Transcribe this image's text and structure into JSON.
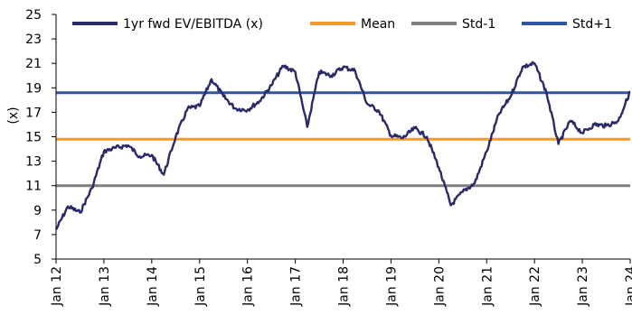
{
  "chart_data": {
    "type": "line",
    "title": "",
    "xlabel": "",
    "ylabel": "(x)",
    "ylim": [
      5,
      25
    ],
    "y_ticks": [
      5,
      7,
      9,
      11,
      13,
      15,
      17,
      19,
      21,
      23,
      25
    ],
    "x_ticks": [
      "Jan 12",
      "Jan 13",
      "Jan 14",
      "Jan 15",
      "Jan 16",
      "Jan 17",
      "Jan 18",
      "Jan 19",
      "Jan 20",
      "Jan 21",
      "Jan 22",
      "Jan 23",
      "Jan 24"
    ],
    "grid": false,
    "legend": "top",
    "colors": {
      "series": "#2a2a6b",
      "mean": "#f39a2e",
      "std_minus": "#7f7f7f",
      "std_plus": "#2f56a5"
    },
    "series": [
      {
        "name": "1yr fwd EV/EBITDA (x)",
        "x": [
          "Jan 12",
          "Apr 12",
          "Jul 12",
          "Oct 12",
          "Jan 13",
          "Apr 13",
          "Jul 13",
          "Oct 13",
          "Jan 14",
          "Apr 14",
          "Jul 14",
          "Oct 14",
          "Jan 15",
          "Apr 15",
          "Jul 15",
          "Oct 15",
          "Jan 16",
          "Apr 16",
          "Jul 16",
          "Oct 16",
          "Jan 17",
          "Apr 17",
          "Jul 17",
          "Oct 17",
          "Jan 18",
          "Apr 18",
          "Jul 18",
          "Oct 18",
          "Jan 19",
          "Apr 19",
          "Jul 19",
          "Oct 19",
          "Jan 20",
          "Apr 20",
          "Jul 20",
          "Oct 20",
          "Jan 21",
          "Apr 21",
          "Jul 21",
          "Oct 21",
          "Jan 22",
          "Apr 22",
          "Jul 22",
          "Oct 22",
          "Jan 23",
          "Apr 23",
          "Jul 23",
          "Oct 23",
          "Jan 24"
        ],
        "values": [
          7.4,
          9.3,
          8.8,
          10.8,
          13.8,
          14.1,
          14.3,
          13.4,
          13.5,
          11.9,
          15.0,
          17.3,
          17.5,
          19.7,
          18.3,
          17.3,
          17.2,
          17.9,
          19.2,
          20.8,
          20.3,
          15.8,
          20.3,
          20.0,
          20.7,
          20.4,
          17.7,
          17.1,
          15.1,
          14.9,
          15.7,
          15.0,
          12.5,
          9.4,
          10.5,
          11.2,
          13.8,
          16.8,
          18.3,
          20.7,
          21.0,
          18.6,
          14.4,
          16.3,
          15.3,
          16.0,
          15.9,
          16.3,
          18.7
        ]
      },
      {
        "name": "Mean",
        "value": 14.8
      },
      {
        "name": "Std-1",
        "value": 11.0
      },
      {
        "name": "Std+1",
        "value": 18.6
      }
    ]
  }
}
